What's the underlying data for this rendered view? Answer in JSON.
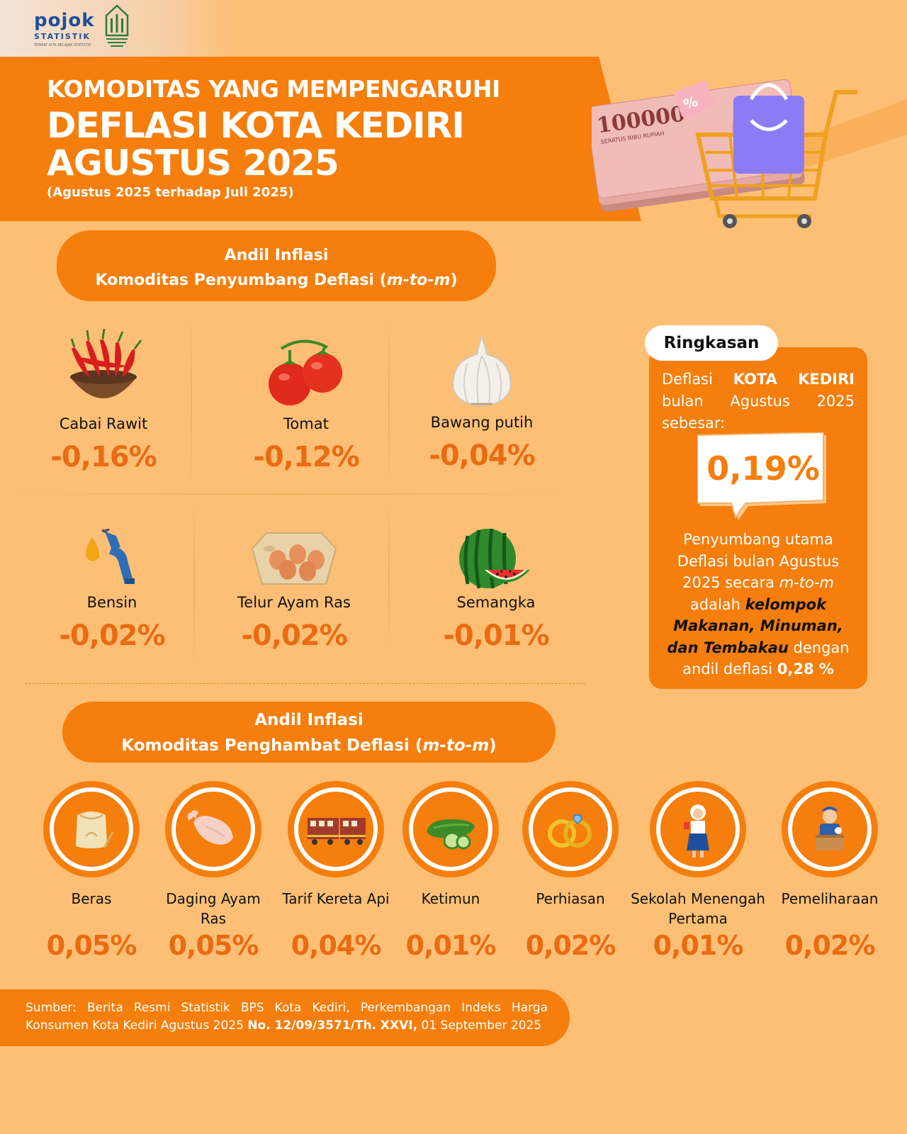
{
  "logo": {
    "brand": "pojok",
    "subtitle": "STATISTIK",
    "tagline": "TEMPAT KITA BELAJAR STATISTIK",
    "emblem": "bps-kediri-emblem"
  },
  "header": {
    "line1": "KOMODITAS YANG MEMPENGARUHI",
    "line2": "DEFLASI KOTA KEDIRI",
    "line3": "AGUSTUS 2025",
    "subtitle": "(Agustus 2025 terhadap Juli 2025)",
    "banknote_text": "100000",
    "banknote_sub": "SERATUS RIBU RUPIAH"
  },
  "deflation_section": {
    "heading_line1": "Andil Inflasi",
    "heading_line2_prefix": "Komoditas Penyumbang Deflasi (",
    "heading_line2_italic": "m-to-m",
    "heading_line2_suffix": ")",
    "items": [
      {
        "label": "Cabai Rawit",
        "value": "-0,16%",
        "icon": "chili-icon"
      },
      {
        "label": "Tomat",
        "value": "-0,12%",
        "icon": "tomato-icon"
      },
      {
        "label": "Bawang putih",
        "value": "-0,04%",
        "icon": "garlic-icon"
      },
      {
        "label": "Bensin",
        "value": "-0,02%",
        "icon": "fuel-nozzle-icon"
      },
      {
        "label": "Telur Ayam Ras",
        "value": "-0,02%",
        "icon": "egg-tray-icon"
      },
      {
        "label": "Semangka",
        "value": "-0,01%",
        "icon": "watermelon-icon"
      }
    ]
  },
  "summary": {
    "tab": "Ringkasan",
    "p1_a": "Deflasi",
    "p1_b": "KOTA KEDIRI",
    "p1_c": "bulan Agustus 2025",
    "p1_d": "sebesar:",
    "value": "0,19%",
    "p2_a": "Penyumbang utama Deflasi bulan Agustus 2025 secara",
    "p2_italic": "m-to-m",
    "p2_b": "adalah",
    "p2_bold_italic": "kelompok Makanan, Minuman, dan Tembakau",
    "p2_c": "dengan andil deflasi",
    "p2_value": "0,28 %"
  },
  "inhibitor_section": {
    "heading_line1": "Andil Inflasi",
    "heading_line2_prefix": "Komoditas Penghambat Deflasi (",
    "heading_line2_italic": "m-to-m",
    "heading_line2_suffix": ")",
    "items": [
      {
        "label": "Beras",
        "value": "0,05%",
        "icon": "rice-sack-icon"
      },
      {
        "label": "Daging Ayam Ras",
        "value": "0,05%",
        "icon": "chicken-meat-icon"
      },
      {
        "label": "Tarif Kereta Api",
        "value": "0,04%",
        "icon": "train-icon"
      },
      {
        "label": "Ketimun",
        "value": "0,01%",
        "icon": "cucumber-icon"
      },
      {
        "label": "Perhiasan",
        "value": "0,02%",
        "icon": "rings-icon"
      },
      {
        "label": "Sekolah Menengah Pertama",
        "value": "0,01%",
        "icon": "student-icon"
      },
      {
        "label": "Pemeliharaan",
        "value": "0,02%",
        "icon": "maintenance-worker-icon"
      }
    ]
  },
  "source": {
    "line1": "Sumber: Berita Resmi Statistik BPS Kota Kediri, Perkembangan Indeks Harga",
    "line2_a": "Konsumen Kota Kediri Agustus 2025",
    "line2_bold": "No. 12/09/3571/Th. XXVI,",
    "line2_b": "01 September 2025"
  },
  "colors": {
    "background": "#FDBF75",
    "accent": "#F57E0C",
    "value_text": "#E96B12"
  }
}
